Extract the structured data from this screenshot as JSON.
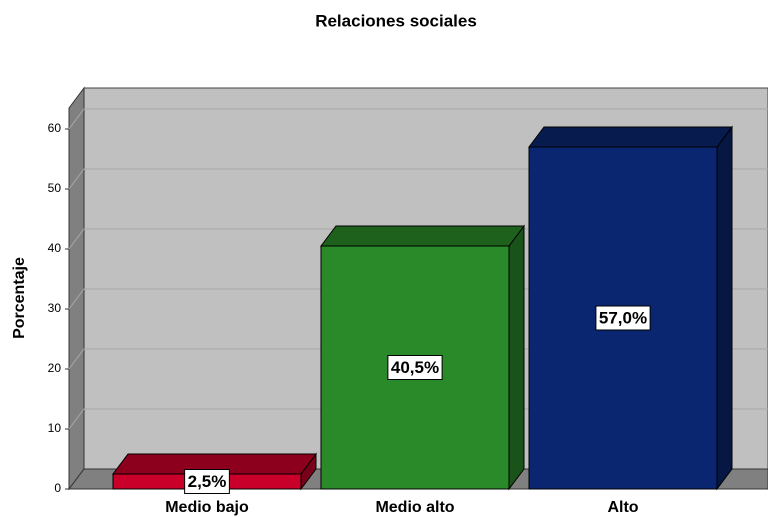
{
  "chart_data": {
    "type": "bar3d",
    "title": "Relaciones sociales",
    "y_label": "Porcentaje",
    "categories": [
      "Medio bajo",
      "Medio alto",
      "Alto"
    ],
    "values": [
      2.5,
      40.5,
      57.0
    ],
    "value_labels": [
      "2,5%",
      "40,5%",
      "57,0%"
    ],
    "colors": [
      "#c8002a",
      "#2a8a2a",
      "#0a2670"
    ],
    "ylim": [
      0,
      63.5
    ],
    "yticks": [
      0,
      10,
      20,
      30,
      40,
      50,
      60
    ],
    "grid": true
  }
}
